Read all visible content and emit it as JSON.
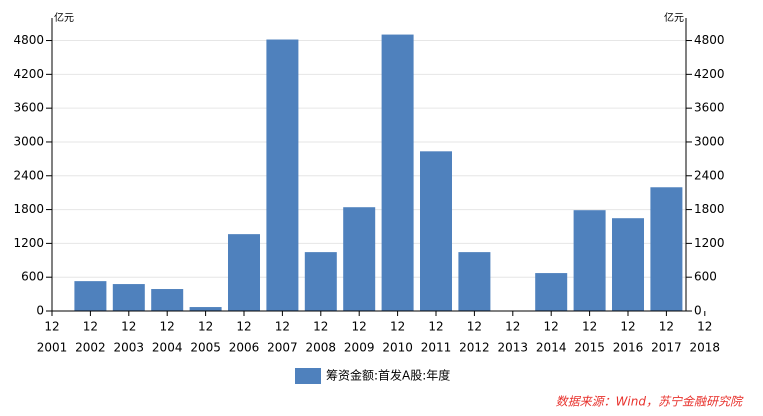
{
  "chart_data": {
    "type": "bar",
    "y_unit": "亿元",
    "y2_unit": "亿元",
    "categories": [
      "2001",
      "2002",
      "2003",
      "2004",
      "2005",
      "2006",
      "2007",
      "2008",
      "2009",
      "2010",
      "2011",
      "2012",
      "2013",
      "2014",
      "2015",
      "2016",
      "2017",
      "2018"
    ],
    "category_month_labels": [
      "12",
      "12",
      "12",
      "12",
      "12",
      "12",
      "12",
      "12",
      "12",
      "12",
      "12",
      "12",
      "12",
      "12",
      "12",
      "12",
      "12",
      "12"
    ],
    "series": [
      {
        "name": "筹资金额:首发A股:年度",
        "color": "#4f81bd",
        "values": [
          null,
          530,
          478,
          390,
          70,
          1364,
          4818,
          1045,
          1842,
          4906,
          2834,
          1045,
          0,
          673,
          1789,
          1647,
          2196,
          null
        ]
      }
    ],
    "ylim": [
      0,
      5200
    ],
    "yticks": [
      0,
      600,
      1200,
      1800,
      2400,
      3000,
      3600,
      4200,
      4800
    ],
    "y2lim": [
      0,
      5200
    ],
    "y2ticks": [
      0,
      600,
      1200,
      1800,
      2400,
      3000,
      3600,
      4200,
      4800
    ],
    "grid": true,
    "source": "数据来源：Wind，苏宁金融研究院"
  }
}
